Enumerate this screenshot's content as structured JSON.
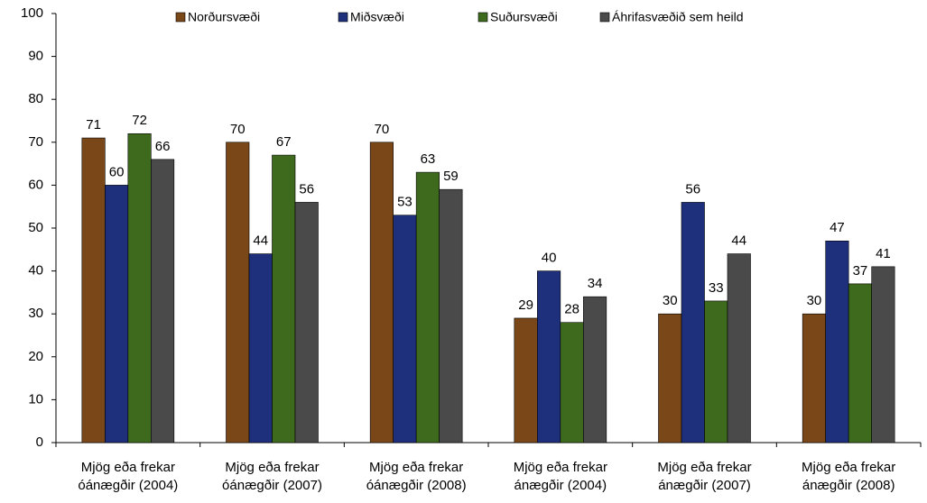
{
  "chart_data": {
    "type": "bar",
    "categories": [
      "Mjög eða frekar óánægðir (2004)",
      "Mjög eða frekar óánægðir (2007)",
      "Mjög eða frekar óánægðir (2008)",
      "Mjög eða frekar ánægðir (2004)",
      "Mjög eða frekar ánægðir (2007)",
      "Mjög eða frekar ánægðir (2008)"
    ],
    "series": [
      {
        "name": "Norðursvæði",
        "color": "#7a4818",
        "values": [
          71,
          70,
          70,
          29,
          30,
          30
        ]
      },
      {
        "name": "Miðsvæði",
        "color": "#1e2f7c",
        "values": [
          60,
          44,
          53,
          40,
          56,
          47
        ]
      },
      {
        "name": "Suðursvæði",
        "color": "#3e6a1d",
        "values": [
          72,
          67,
          63,
          28,
          33,
          37
        ]
      },
      {
        "name": "Áhrifasvæðið sem heild",
        "color": "#4a4a4a",
        "values": [
          66,
          56,
          59,
          34,
          44,
          41
        ]
      }
    ],
    "ylim": [
      0,
      100
    ],
    "yticks": [
      0,
      10,
      20,
      30,
      40,
      50,
      60,
      70,
      80,
      90,
      100
    ],
    "grid": false,
    "legend": "top"
  }
}
